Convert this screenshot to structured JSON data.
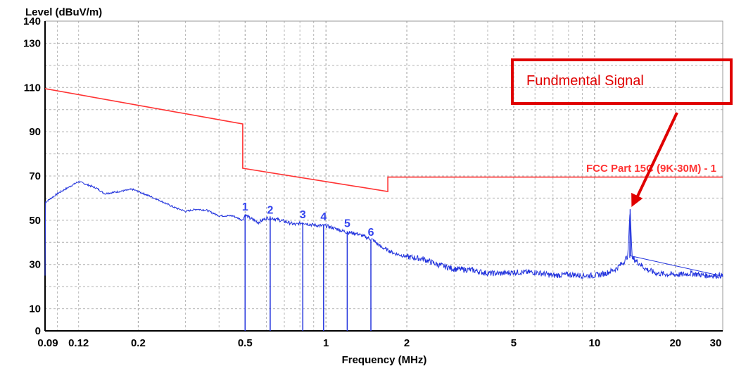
{
  "chart_data": {
    "type": "line",
    "title": "",
    "ylabel": "Level (dBuV/m)",
    "xlabel": "Frequency (MHz)",
    "x_scale": "log",
    "xlim": [
      0.09,
      30
    ],
    "ylim": [
      0,
      140
    ],
    "y_ticks": [
      0,
      10,
      30,
      50,
      70,
      90,
      110,
      130,
      140
    ],
    "x_ticks": [
      {
        "value": 0.09,
        "label": "0.09"
      },
      {
        "value": 0.12,
        "label": "0.12"
      },
      {
        "value": 0.2,
        "label": "0.2"
      },
      {
        "value": 0.5,
        "label": "0.5"
      },
      {
        "value": 1,
        "label": "1"
      },
      {
        "value": 2,
        "label": "2"
      },
      {
        "value": 5,
        "label": "5"
      },
      {
        "value": 10,
        "label": "10"
      },
      {
        "value": 20,
        "label": "20"
      },
      {
        "value": 30,
        "label": "30"
      }
    ],
    "grid": true,
    "series": [
      {
        "name": "FCC Part 15C (9K-30M) - 1",
        "color": "#ff3333",
        "x": [
          0.09,
          0.49,
          0.49,
          1.7,
          1.7,
          30
        ],
        "y": [
          109.5,
          93.5,
          73.5,
          63,
          69.5,
          69.5
        ]
      },
      {
        "color": "#2233dd",
        "x": [
          0.09,
          0.1,
          0.12,
          0.14,
          0.15,
          0.17,
          0.19,
          0.21,
          0.24,
          0.27,
          0.3,
          0.33,
          0.36,
          0.4,
          0.45,
          0.49,
          0.5,
          0.52,
          0.56,
          0.6,
          0.63,
          0.7,
          0.77,
          0.82,
          0.88,
          0.95,
          1.0,
          1.1,
          1.2,
          1.3,
          1.4,
          1.5,
          1.6,
          1.8,
          2.0,
          2.3,
          2.6,
          3.0,
          3.5,
          4.0,
          4.5,
          5.0,
          6.0,
          7.0,
          8.0,
          9.0,
          10.0,
          11.0,
          12.0,
          12.8,
          13.3,
          13.56,
          13.8,
          14.5,
          15.5,
          17.0,
          19.0,
          21.0,
          23.0,
          26.0,
          30.0
        ],
        "y": [
          58,
          62,
          67.5,
          64.5,
          62,
          63,
          64,
          62,
          59,
          56,
          54,
          55,
          54.5,
          52,
          52,
          50,
          52.5,
          51,
          49,
          51,
          51,
          49.5,
          48,
          49,
          48,
          47.5,
          47.5,
          46,
          44.5,
          44,
          42.5,
          41,
          38,
          35,
          33.5,
          32.5,
          30,
          28,
          27.5,
          26,
          26,
          26.5,
          26.5,
          25,
          25.5,
          25,
          25,
          26,
          28,
          31,
          34,
          55,
          33,
          31,
          28,
          26,
          25.5,
          25.5,
          26,
          25,
          25
        ]
      }
    ],
    "markers": [
      {
        "label": "1",
        "x": 0.5,
        "y": 52.5
      },
      {
        "label": "2",
        "x": 0.62,
        "y": 51
      },
      {
        "label": "3",
        "x": 0.82,
        "y": 49
      },
      {
        "label": "4",
        "x": 0.98,
        "y": 48
      },
      {
        "label": "5",
        "x": 1.2,
        "y": 45
      },
      {
        "label": "6",
        "x": 1.47,
        "y": 41
      }
    ],
    "limit_label": "FCC Part 15C (9K-30M) - 1",
    "annotation": {
      "text": "Fundmental Signal",
      "target_x": 13.56,
      "target_y": 55
    }
  }
}
